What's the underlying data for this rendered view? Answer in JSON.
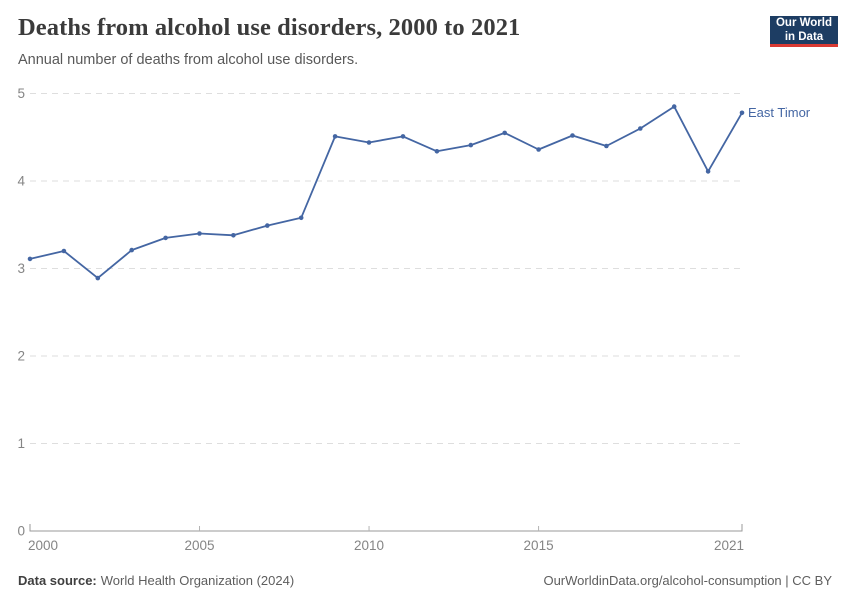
{
  "header": {
    "title": "Deaths from alcohol use disorders, 2000 to 2021",
    "subtitle": "Annual number of deaths from alcohol use disorders.",
    "logo": {
      "line1": "Our World",
      "line2": "in Data",
      "bg_color": "#1d3d63",
      "accent_color": "#d93a33"
    }
  },
  "chart_data": {
    "type": "line",
    "title": "Deaths from alcohol use disorders, 2000 to 2021",
    "xlabel": "",
    "ylabel": "",
    "xlim": [
      2000,
      2021
    ],
    "ylim": [
      0,
      5
    ],
    "x_ticks": [
      2000,
      2005,
      2010,
      2015,
      2021
    ],
    "y_ticks": [
      0,
      1,
      2,
      3,
      4,
      5
    ],
    "grid": "horizontal-dashed",
    "legend_position": "end-of-line-label",
    "years": [
      2000,
      2001,
      2002,
      2003,
      2004,
      2005,
      2006,
      2007,
      2008,
      2009,
      2010,
      2011,
      2012,
      2013,
      2014,
      2015,
      2016,
      2017,
      2018,
      2019,
      2020,
      2021
    ],
    "series": [
      {
        "name": "East Timor",
        "color": "#4466a3",
        "values": [
          3.11,
          3.2,
          2.89,
          3.21,
          3.35,
          3.4,
          3.38,
          3.49,
          3.58,
          4.51,
          4.44,
          4.51,
          4.34,
          4.41,
          4.55,
          4.36,
          4.52,
          4.4,
          4.6,
          4.85,
          4.11,
          4.78
        ]
      }
    ],
    "colors": {
      "grid": "#dedede",
      "axis": "#9a9a9a",
      "axis_tick": "#b3b3b3",
      "tick_label": "#858585"
    }
  },
  "footer": {
    "datasource_label": "Data source:",
    "datasource_value": "World Health Organization (2024)",
    "right_text": "OurWorldinData.org/alcohol-consumption | CC BY"
  }
}
